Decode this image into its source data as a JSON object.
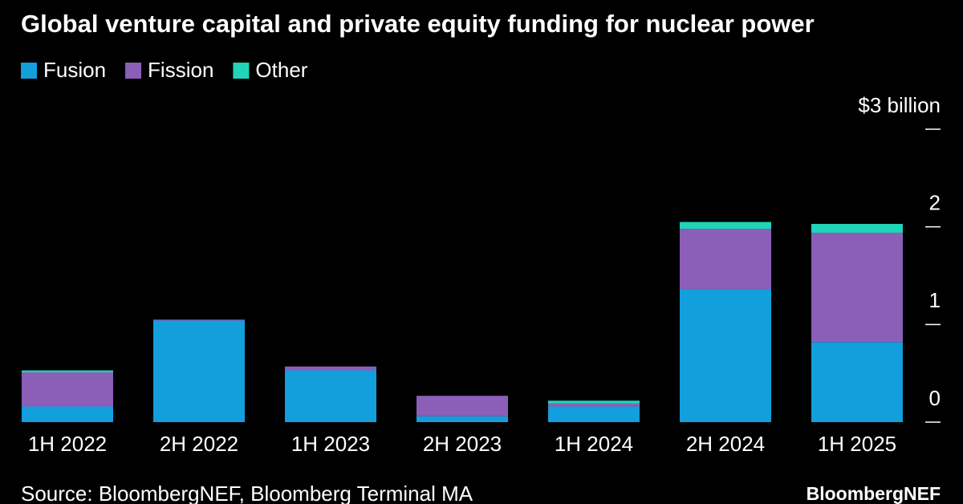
{
  "chart_data": {
    "type": "stacked-bar",
    "title": "Global venture capital and private equity funding for nuclear power",
    "categories": [
      "1H 2022",
      "2H 2022",
      "1H 2023",
      "2H 2023",
      "1H 2024",
      "2H 2024",
      "1H 2025"
    ],
    "series": [
      {
        "name": "Fusion",
        "color": "#139edc",
        "values": [
          0.16,
          1.04,
          0.53,
          0.06,
          0.16,
          1.36,
          0.82
        ]
      },
      {
        "name": "Fission",
        "color": "#8b5fb8",
        "values": [
          0.35,
          0.01,
          0.04,
          0.21,
          0.03,
          0.62,
          1.12
        ]
      },
      {
        "name": "Other",
        "color": "#1fd4b7",
        "values": [
          0.02,
          0,
          0,
          0,
          0.03,
          0.07,
          0.09
        ]
      }
    ],
    "ylim": [
      0,
      3
    ],
    "yticks": [
      0,
      1,
      2,
      {
        "value": 3,
        "label": "$3 billion"
      }
    ],
    "source": "Source: BloombergNEF, Bloomberg Terminal MA",
    "brand": "BloombergNEF"
  }
}
